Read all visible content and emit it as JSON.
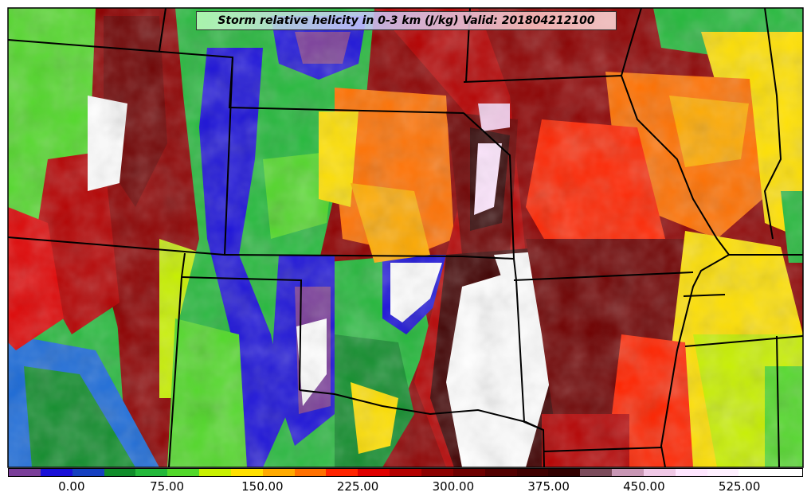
{
  "title": "Storm relative helicity in 0-3 km (J/kg) Valid: 201804212100",
  "colorbar": {
    "colors": [
      "#7a3d99",
      "#1a10d8",
      "#1640c0",
      "#0f8c2a",
      "#23b83a",
      "#52d82a",
      "#c8f000",
      "#ffe000",
      "#ffaa00",
      "#ff7000",
      "#ff2400",
      "#e00000",
      "#b40000",
      "#8c0000",
      "#6e0000",
      "#520000",
      "#3f0000",
      "#300000",
      "#7a4a5a",
      "#c896b4",
      "#f0c8e6",
      "#ffe6ff",
      "#fff0ff",
      "#ffffff",
      "#ffffff"
    ],
    "tick_labels": [
      "0.00",
      "75.00",
      "150.00",
      "225.00",
      "300.00",
      "375.00",
      "450.00",
      "525.00"
    ],
    "tick_values": [
      0,
      75,
      150,
      225,
      300,
      375,
      450,
      525
    ],
    "range": [
      -50,
      575
    ]
  }
}
